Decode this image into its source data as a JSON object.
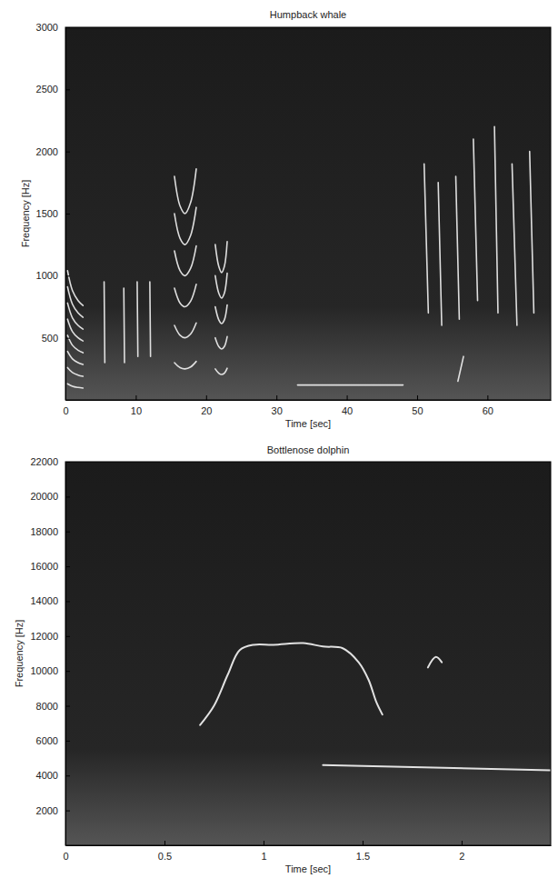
{
  "chart_data": [
    {
      "type": "spectrogram",
      "title": "Humpback whale",
      "x_label": "Time [sec]",
      "y_label": "Frequency [Hz]",
      "xlim": [
        0,
        69
      ],
      "xticks": [
        0,
        10,
        20,
        30,
        40,
        50,
        60
      ],
      "ylim": [
        0,
        3000
      ],
      "yticks": [
        500,
        1000,
        1500,
        2000,
        2500,
        3000
      ],
      "color": "#eeeeee",
      "series": [
        {
          "x": [
            0.3,
            1,
            1.8,
            2.5
          ],
          "values": [
            130,
            110,
            100,
            95
          ]
        },
        {
          "x": [
            0.3,
            1,
            1.8,
            2.5
          ],
          "values": [
            260,
            220,
            200,
            190
          ]
        },
        {
          "x": [
            0.3,
            1,
            1.8,
            2.5
          ],
          "values": [
            390,
            330,
            300,
            285
          ]
        },
        {
          "x": [
            0.3,
            1,
            1.8,
            2.5
          ],
          "values": [
            520,
            440,
            400,
            380
          ]
        },
        {
          "x": [
            0.3,
            1,
            1.8,
            2.5
          ],
          "values": [
            650,
            550,
            500,
            475
          ]
        },
        {
          "x": [
            0.3,
            1,
            1.8,
            2.5
          ],
          "values": [
            780,
            660,
            600,
            570
          ]
        },
        {
          "x": [
            0.3,
            1,
            1.8,
            2.5
          ],
          "values": [
            910,
            770,
            700,
            665
          ]
        },
        {
          "x": [
            0.3,
            1,
            1.8,
            2.5
          ],
          "values": [
            1040,
            880,
            800,
            760
          ]
        },
        {
          "x": [
            5.5,
            5.6
          ],
          "values": [
            950,
            300
          ]
        },
        {
          "x": [
            8.3,
            8.4
          ],
          "values": [
            900,
            300
          ]
        },
        {
          "x": [
            10.2,
            10.3
          ],
          "values": [
            950,
            350
          ]
        },
        {
          "x": [
            12,
            12.1
          ],
          "values": [
            950,
            350
          ]
        },
        {
          "x": [
            15.5,
            16.3,
            17,
            17.8,
            18.6
          ],
          "values": [
            300,
            260,
            250,
            265,
            310
          ]
        },
        {
          "x": [
            15.5,
            16.3,
            17,
            17.8,
            18.6
          ],
          "values": [
            600,
            520,
            500,
            530,
            620
          ]
        },
        {
          "x": [
            15.5,
            16.3,
            17,
            17.8,
            18.6
          ],
          "values": [
            900,
            780,
            750,
            795,
            930
          ]
        },
        {
          "x": [
            15.5,
            16.3,
            17,
            17.8,
            18.6
          ],
          "values": [
            1200,
            1040,
            1000,
            1060,
            1240
          ]
        },
        {
          "x": [
            15.5,
            16.3,
            17,
            17.8,
            18.6
          ],
          "values": [
            1500,
            1300,
            1250,
            1325,
            1550
          ]
        },
        {
          "x": [
            15.5,
            16.3,
            17,
            17.8,
            18.6
          ],
          "values": [
            1800,
            1560,
            1500,
            1590,
            1860
          ]
        },
        {
          "x": [
            21.3,
            21.8,
            22.2,
            22.6,
            23.0
          ],
          "values": [
            250,
            215,
            205,
            215,
            255
          ]
        },
        {
          "x": [
            21.3,
            21.8,
            22.2,
            22.6,
            23.0
          ],
          "values": [
            500,
            430,
            410,
            430,
            510
          ]
        },
        {
          "x": [
            21.3,
            21.8,
            22.2,
            22.6,
            23.0
          ],
          "values": [
            750,
            645,
            615,
            645,
            765
          ]
        },
        {
          "x": [
            21.3,
            21.8,
            22.2,
            22.6,
            23.0
          ],
          "values": [
            1000,
            860,
            820,
            860,
            1020
          ]
        },
        {
          "x": [
            21.3,
            21.8,
            22.2,
            22.6,
            23.0
          ],
          "values": [
            1250,
            1075,
            1025,
            1075,
            1275
          ]
        },
        {
          "x": [
            33,
            48
          ],
          "values": [
            120,
            120
          ]
        },
        {
          "x": [
            51,
            51.6
          ],
          "values": [
            1900,
            700
          ]
        },
        {
          "x": [
            53,
            53.5
          ],
          "values": [
            1750,
            600
          ]
        },
        {
          "x": [
            55.5,
            56
          ],
          "values": [
            1800,
            650
          ]
        },
        {
          "x": [
            55.8,
            56.6
          ],
          "values": [
            150,
            350
          ]
        },
        {
          "x": [
            58,
            58.6
          ],
          "values": [
            2100,
            800
          ]
        },
        {
          "x": [
            61,
            61.5
          ],
          "values": [
            2200,
            700
          ]
        },
        {
          "x": [
            63.5,
            64.2
          ],
          "values": [
            1900,
            600
          ]
        },
        {
          "x": [
            66,
            66.6
          ],
          "values": [
            2000,
            700
          ]
        }
      ]
    },
    {
      "type": "spectrogram",
      "title": "Bottlenose dolphin",
      "x_label": "Time [sec]",
      "y_label": "Frequency [Hz]",
      "xlim": [
        0,
        2.45
      ],
      "xticks": [
        0,
        0.5,
        1,
        1.5,
        2
      ],
      "ylim": [
        0,
        22000
      ],
      "yticks": [
        2000,
        4000,
        6000,
        8000,
        10000,
        12000,
        14000,
        16000,
        18000,
        20000,
        22000
      ],
      "color": "#f2f2f2",
      "series": [
        {
          "x": [
            0.68,
            0.75,
            0.82,
            0.88,
            0.95,
            1.05,
            1.2,
            1.3,
            1.4,
            1.48,
            1.53,
            1.57,
            1.6
          ],
          "values": [
            6900,
            8000,
            9800,
            11200,
            11500,
            11500,
            11600,
            11400,
            11300,
            10500,
            9500,
            8200,
            7500
          ]
        },
        {
          "x": [
            1.83,
            1.87,
            1.9
          ],
          "values": [
            10200,
            10800,
            10500
          ]
        },
        {
          "x": [
            1.3,
            2.45
          ],
          "values": [
            4600,
            4300
          ]
        }
      ]
    }
  ]
}
